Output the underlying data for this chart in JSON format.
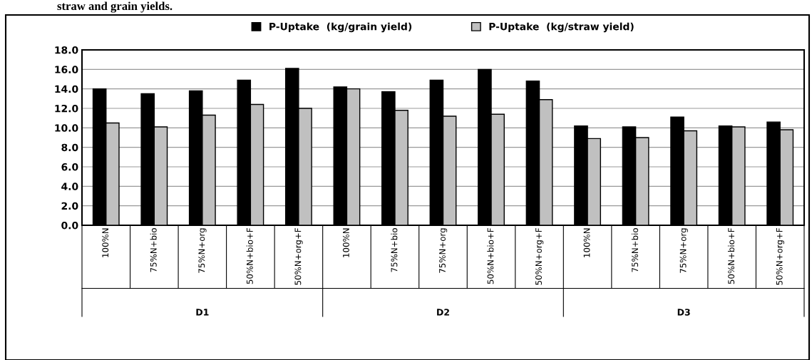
{
  "chart_data": {
    "type": "bar",
    "categories": [
      "100%N",
      "75%N+bio",
      "75%N+org",
      "50%N+bio+F",
      "50%N+org+F",
      "100%N",
      "75%N+bio",
      "75%N+org",
      "50%N+bio+F",
      "50%N+org+F",
      "100%N",
      "75%N+bio",
      "75%N+org",
      "50%N+bio+F",
      "50%N+org+F"
    ],
    "series": [
      {
        "name": "P-Uptake  (kg/grain yield)",
        "color": "#000000",
        "values": [
          14.0,
          13.5,
          13.8,
          14.9,
          16.1,
          14.2,
          13.7,
          14.9,
          16.0,
          14.8,
          10.2,
          10.1,
          11.1,
          10.2,
          10.6
        ]
      },
      {
        "name": "P-Uptake  (kg/straw yield)",
        "color": "#c0c0c0",
        "values": [
          10.5,
          10.1,
          11.3,
          12.4,
          12.0,
          14.0,
          11.8,
          11.2,
          11.4,
          12.9,
          8.9,
          9.0,
          9.7,
          10.1,
          9.8
        ]
      }
    ],
    "ylim": [
      0,
      18
    ],
    "yticks": [
      {
        "value": 0,
        "label": "0.0"
      },
      {
        "value": 2,
        "label": "2.0"
      },
      {
        "value": 4,
        "label": "4.0"
      },
      {
        "value": 6,
        "label": "6.0"
      },
      {
        "value": 8,
        "label": "8.0"
      },
      {
        "value": 10,
        "label": "10.0"
      },
      {
        "value": 12,
        "label": "12.0"
      },
      {
        "value": 14,
        "label": "14.0"
      },
      {
        "value": 16,
        "label": "16.0"
      },
      {
        "value": 18,
        "label": "18.0"
      }
    ],
    "grid": "y",
    "legend": "top",
    "annotations": [
      "straw and grain yields.",
      "D1",
      "D2",
      "D3"
    ]
  }
}
